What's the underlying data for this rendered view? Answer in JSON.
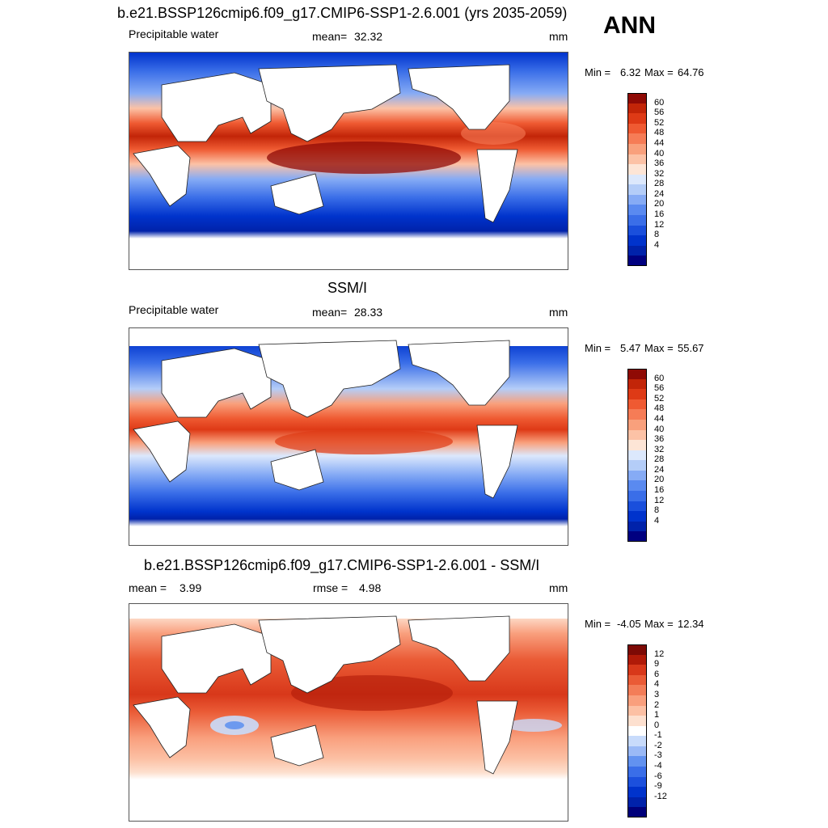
{
  "header": {
    "title": "b.e21.BSSP126cmip6.f09_g17.CMIP6-SSP1-2.6.001 (yrs 2035-2059)",
    "season": "ANN"
  },
  "colors": {
    "pw_scale": [
      "#000080",
      "#0022aa",
      "#0033cc",
      "#1a4fdc",
      "#3a6ee8",
      "#5a8af0",
      "#86abf5",
      "#b4cdf8",
      "#dce8fc",
      "#fde5d6",
      "#fcc2a6",
      "#f9a07c",
      "#f67c56",
      "#ef5a32",
      "#de3a16",
      "#c22508",
      "#8f0a05"
    ],
    "diff_scale": [
      "#00007a",
      "#0022aa",
      "#0033cc",
      "#1c50dd",
      "#3a6ee8",
      "#6292f0",
      "#9ab9f6",
      "#c8dbfb",
      "#ffffff",
      "#fde0cf",
      "#fcc0a4",
      "#f99f7d",
      "#f37d58",
      "#ea5b36",
      "#d8381a",
      "#b01a08",
      "#7d0a05"
    ]
  },
  "panels": [
    {
      "title_left": "Precipitable water",
      "mean_label": "mean=",
      "mean_value": "32.32",
      "units": "mm",
      "min_label": "Min =",
      "min_value": "6.32",
      "max_label": "Max =",
      "max_value": "64.76",
      "colorbar_labels": [
        "60",
        "56",
        "52",
        "48",
        "44",
        "40",
        "36",
        "32",
        "28",
        "24",
        "20",
        "16",
        "12",
        "8",
        "4"
      ]
    },
    {
      "heading": "SSM/I",
      "title_left": "Precipitable water",
      "mean_label": "mean=",
      "mean_value": "28.33",
      "units": "mm",
      "min_label": "Min =",
      "min_value": "5.47",
      "max_label": "Max =",
      "max_value": "55.67",
      "colorbar_labels": [
        "60",
        "56",
        "52",
        "48",
        "44",
        "40",
        "36",
        "32",
        "28",
        "24",
        "20",
        "16",
        "12",
        "8",
        "4"
      ]
    },
    {
      "heading": "b.e21.BSSP126cmip6.f09_g17.CMIP6-SSP1-2.6.001 - SSM/I",
      "mean_label": "mean =",
      "mean_value": "3.99",
      "rmse_label": "rmse =",
      "rmse_value": "4.98",
      "units": "mm",
      "min_label": "Min =",
      "min_value": "-4.05",
      "max_label": "Max =",
      "max_value": "12.34",
      "colorbar_labels": [
        "12",
        "9",
        "6",
        "4",
        "3",
        "2",
        "1",
        "0",
        "-1",
        "-2",
        "-3",
        "-4",
        "-6",
        "-9",
        "-12"
      ]
    }
  ]
}
